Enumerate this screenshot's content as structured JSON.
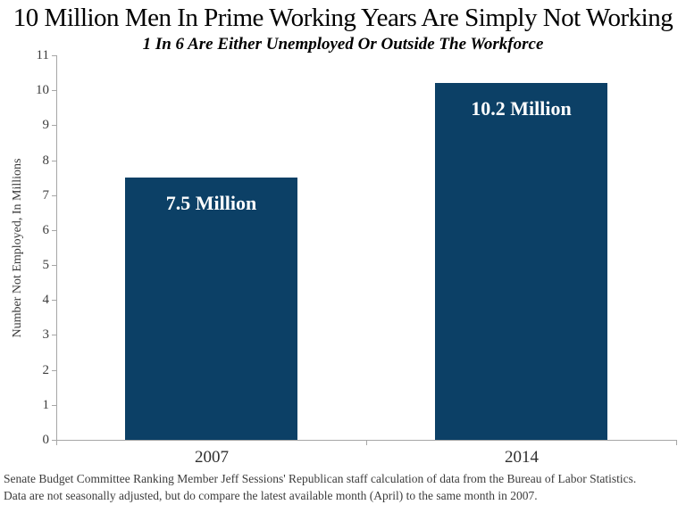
{
  "title": "10 Million Men In Prime Working Years Are Simply Not Working",
  "subtitle": "1 In 6 Are Either Unemployed Or Outside The Workforce",
  "chart_data": {
    "type": "bar",
    "categories": [
      "2007",
      "2014"
    ],
    "values": [
      7.5,
      10.2
    ],
    "bar_labels": [
      "7.5 Million",
      "10.2 Million"
    ],
    "title": "10 Million Men In Prime Working Years Are Simply Not Working",
    "subtitle": "1 In 6 Are Either Unemployed Or Outside The Workforce",
    "xlabel": "",
    "ylabel": "Number Not Employed, In Millions",
    "ylim": [
      0,
      11
    ],
    "ytick_step": 1,
    "grid": false,
    "legend": "none",
    "bar_color": "#0C4066",
    "bar_label_color": "#FFFFFF",
    "axis_color": "#A6A6A6"
  },
  "footer": {
    "line1": "Senate Budget Committee Ranking Member Jeff Sessions' Republican staff calculation of data from the Bureau of Labor Statistics.",
    "line2": "Data are not seasonally adjusted, but do compare the latest available month (April) to the same month in 2007."
  }
}
